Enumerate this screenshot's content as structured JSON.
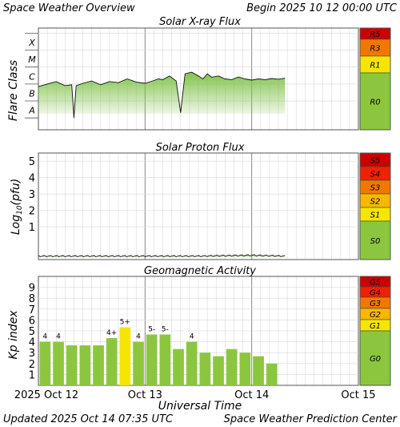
{
  "header": {
    "title": "Space Weather Overview",
    "begin": "Begin 2025 10 12 00:00 UTC"
  },
  "footer": {
    "xlabel": "Universal Time",
    "updated": "Updated 2025 Oct 14 07:35 UTC",
    "source": "Space Weather Prediction Center"
  },
  "colors": {
    "r5": "#cc0000",
    "r4": "#ee2200",
    "r3": "#f07800",
    "r2": "#f8b800",
    "r1": "#f4e600",
    "quiet": "#8cc63f",
    "trace": "#7bc043",
    "bar": "#8cc63f",
    "bar_highlight": "#f4e600",
    "grid": "#d8d8d8",
    "frame": "#555555"
  },
  "time_axis": {
    "start": "2025-10-12 00:00",
    "end": "2025-10-15 00:00",
    "tick_labels": [
      "2025 Oct 12",
      "Oct 13",
      "Oct 14",
      "Oct 15"
    ],
    "tick_dates": [
      "2025-10-12",
      "2025-10-13",
      "2025-10-14",
      "2025-10-15"
    ]
  },
  "chart_data": [
    {
      "type": "line",
      "title": "Solar X-ray Flux",
      "ylabel": "Flare Class",
      "yscale": "log",
      "class_labels": [
        "A",
        "B",
        "C",
        "M",
        "X"
      ],
      "scale_labels": [
        "R5",
        "R3",
        "R1",
        "R0"
      ],
      "series": [
        {
          "x": [
            "10-12 00:00",
            "10-12 02:00",
            "10-12 04:00",
            "10-12 06:00",
            "10-12 07:30",
            "10-12 08:00",
            "10-12 08:30",
            "10-12 10:00",
            "10-12 12:00",
            "10-12 14:00",
            "10-12 16:00",
            "10-12 18:00",
            "10-12 20:00",
            "10-12 22:00",
            "10-13 00:00",
            "10-13 02:00",
            "10-13 03:00",
            "10-13 04:00",
            "10-13 05:30",
            "10-13 07:00",
            "10-13 08:00",
            "10-13 09:00",
            "10-13 10:30",
            "10-13 12:00",
            "10-13 13:00",
            "10-13 14:00",
            "10-13 15:00",
            "10-13 16:30",
            "10-13 18:00",
            "10-13 19:30",
            "10-13 21:00",
            "10-13 22:30",
            "10-14 00:00",
            "10-14 01:30",
            "10-14 03:00",
            "10-14 04:30",
            "10-14 06:00",
            "10-14 07:30"
          ],
          "y": [
            "B7",
            "C1",
            "C1.4",
            "B8",
            "B9",
            "A1",
            "B8",
            "C1.1",
            "C1.5",
            "B9",
            "C1.4",
            "C1.2",
            "C2",
            "C1.3",
            "C1.1",
            "C1.6",
            "C2",
            "C1.8",
            "C3",
            "C1.5",
            "A2",
            "C4",
            "C5",
            "C3",
            "C2",
            "C4",
            "C2.5",
            "C3",
            "C2",
            "C1.8",
            "C2.6",
            "C2",
            "C1.7",
            "C2",
            "C1.8",
            "C2.1",
            "C1.9",
            "C2.2"
          ]
        }
      ]
    },
    {
      "type": "line",
      "title": "Solar Proton Flux",
      "ylabel_prefix": "Log",
      "ylabel_sub": "10",
      "ylabel_suffix": "(pfu)",
      "ylim": [
        -1,
        5.5
      ],
      "ticks": [
        "1",
        "2",
        "3",
        "4",
        "5"
      ],
      "scale_labels": [
        "S5",
        "S4",
        "S3",
        "S2",
        "S1",
        "S0"
      ],
      "series": [
        {
          "x": [
            "10-12 00:00",
            "10-12 12:00",
            "10-13 00:00",
            "10-13 12:00",
            "10-14 00:00",
            "10-14 07:30"
          ],
          "y": [
            -0.8,
            -0.8,
            -0.8,
            -0.8,
            -0.75,
            -0.8
          ]
        }
      ]
    },
    {
      "type": "bar",
      "title": "Geomagnetic Activity",
      "ylabel": "Kp index",
      "ylim": [
        0,
        10
      ],
      "ticks": [
        "1",
        "2",
        "3",
        "4",
        "5",
        "6",
        "7",
        "8",
        "9"
      ],
      "scale_labels": [
        "G5",
        "G4",
        "G3",
        "G2",
        "G1",
        "G0"
      ],
      "interval_hours": 3,
      "values": [
        4,
        4,
        3.67,
        3.67,
        3.67,
        4.33,
        5.33,
        4,
        4.67,
        4.67,
        3.33,
        4,
        3,
        2.67,
        3.33,
        3,
        2.67,
        2
      ],
      "value_labels": [
        "4",
        "4",
        "",
        "",
        "",
        "4+",
        "5+",
        "4",
        "5-",
        "5-",
        "",
        "4",
        "",
        "",
        "",
        "",
        "",
        ""
      ]
    }
  ]
}
